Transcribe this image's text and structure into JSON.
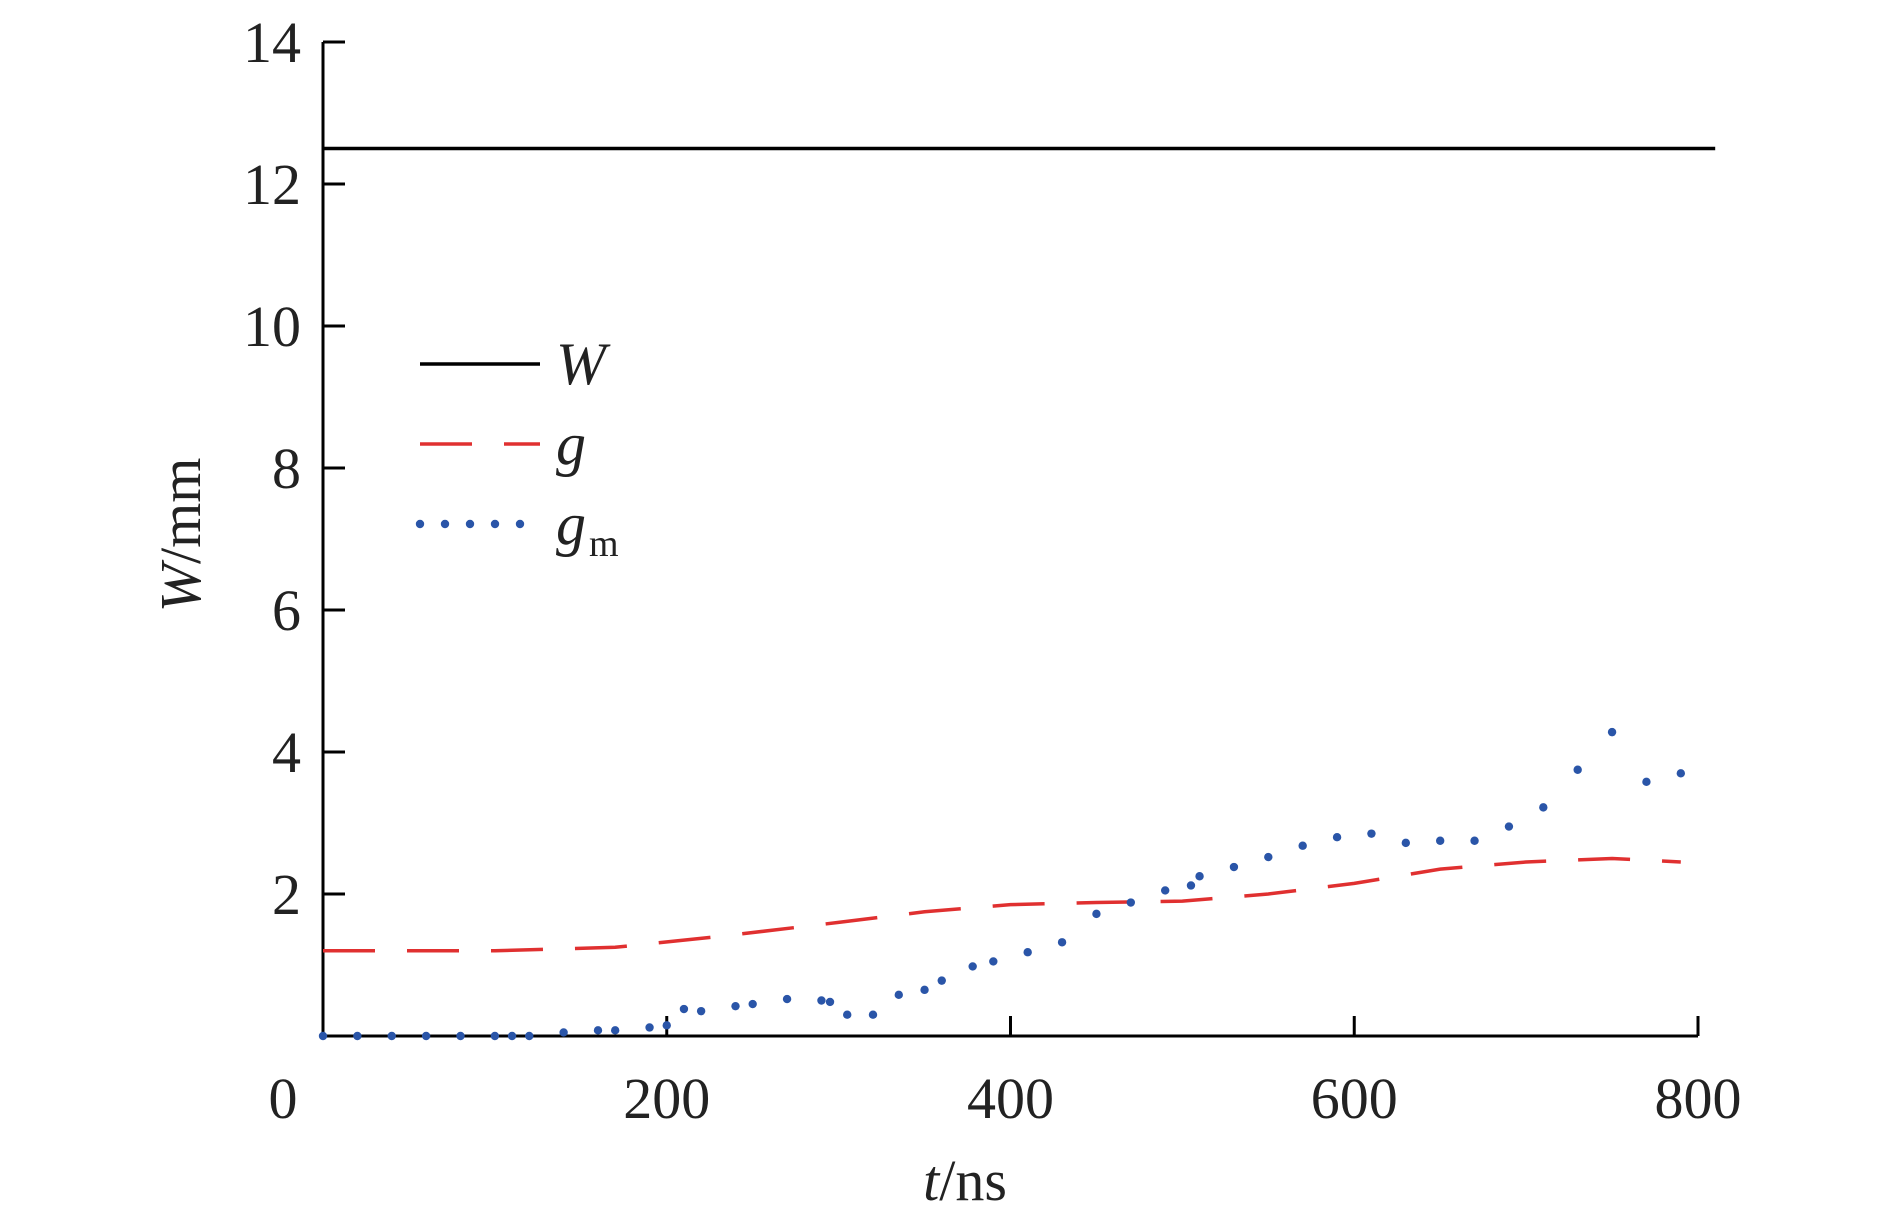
{
  "chart_data": {
    "type": "line",
    "xlabel_var": "t",
    "xlabel_unit": "/ns",
    "ylabel_var": "W",
    "ylabel_unit": "/mm",
    "xlim": [
      0,
      800
    ],
    "ylim": [
      0,
      14
    ],
    "x_ticks": [
      "0",
      "200",
      "400",
      "600",
      "800"
    ],
    "y_ticks": [
      "2",
      "4",
      "6",
      "8",
      "10",
      "12",
      "14"
    ],
    "legend_position": "upper-left",
    "series": [
      {
        "name": "W",
        "style": "solid",
        "color": "#000000",
        "x": [
          0,
          810
        ],
        "y": [
          12.5,
          12.5
        ]
      },
      {
        "name": "g",
        "style": "dashed",
        "color": "#e03030",
        "x": [
          0,
          100,
          170,
          230,
          300,
          350,
          400,
          450,
          500,
          550,
          600,
          650,
          700,
          750,
          790
        ],
        "y": [
          1.2,
          1.2,
          1.25,
          1.4,
          1.6,
          1.75,
          1.85,
          1.88,
          1.9,
          2.0,
          2.15,
          2.35,
          2.45,
          2.5,
          2.45
        ]
      },
      {
        "name": "g",
        "name_sub": "m",
        "style": "dotted",
        "color": "#2a55a8",
        "x": [
          0,
          20,
          40,
          60,
          80,
          100,
          110,
          120,
          140,
          160,
          170,
          190,
          200,
          210,
          220,
          240,
          250,
          270,
          290,
          295,
          305,
          320,
          335,
          350,
          360,
          378,
          390,
          410,
          430,
          450,
          470,
          490,
          505,
          510,
          530,
          550,
          570,
          590,
          610,
          630,
          650,
          670,
          690,
          710,
          730,
          750,
          770,
          790
        ],
        "y": [
          0,
          0,
          0,
          0,
          0,
          0,
          0,
          0,
          0.05,
          0.08,
          0.08,
          0.12,
          0.15,
          0.38,
          0.35,
          0.42,
          0.45,
          0.52,
          0.5,
          0.48,
          0.3,
          0.3,
          0.58,
          0.65,
          0.78,
          0.98,
          1.05,
          1.18,
          1.32,
          1.72,
          1.88,
          2.05,
          2.12,
          2.25,
          2.38,
          2.52,
          2.68,
          2.8,
          2.85,
          2.72,
          2.75,
          2.75,
          2.95,
          3.22,
          3.75,
          4.28,
          3.58,
          3.7
        ]
      }
    ]
  }
}
